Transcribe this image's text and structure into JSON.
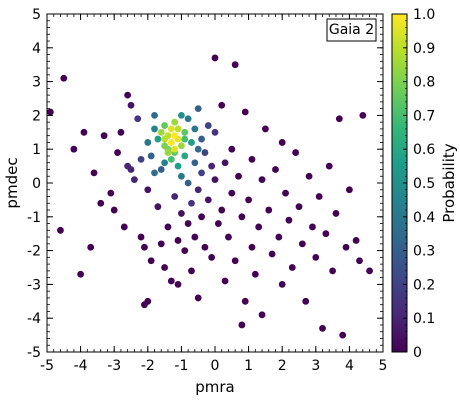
{
  "chart_data": {
    "type": "scatter",
    "annotation": "Gaia 2",
    "xlabel": "pmra",
    "ylabel": "pmdec",
    "xlim": [
      -5,
      5
    ],
    "ylim": [
      -5,
      5
    ],
    "x_ticks": [
      "-5",
      "-4",
      "-3",
      "-2",
      "-1",
      "0",
      "1",
      "2",
      "3",
      "4",
      "5"
    ],
    "y_ticks": [
      "5",
      "4",
      "3",
      "2",
      "1",
      "0",
      "-1",
      "-2",
      "-3",
      "-4",
      "-5"
    ],
    "grid": false,
    "colorbar": {
      "label": "Probability",
      "range": [
        0,
        1
      ],
      "ticks": [
        "1.0",
        "0.9",
        "0.8",
        "0.7",
        "0.6",
        "0.5",
        "0.4",
        "0.3",
        "0.2",
        "0.1",
        "0"
      ],
      "colormap": [
        "#440154",
        "#482878",
        "#3e4989",
        "#31688e",
        "#26828e",
        "#1f9e89",
        "#35b779",
        "#6ece58",
        "#b5de2b",
        "#fde725"
      ]
    },
    "points": [
      {
        "x": -4.5,
        "y": 3.1,
        "p": 0.0
      },
      {
        "x": -4.9,
        "y": 2.1,
        "p": 0.0
      },
      {
        "x": -4.6,
        "y": -1.4,
        "p": 0.0
      },
      {
        "x": -4.2,
        "y": 1.0,
        "p": 0.0
      },
      {
        "x": -3.9,
        "y": 1.5,
        "p": 0.0
      },
      {
        "x": -4.0,
        "y": -2.7,
        "p": 0.0
      },
      {
        "x": -3.7,
        "y": -1.9,
        "p": 0.0
      },
      {
        "x": -3.6,
        "y": 0.3,
        "p": 0.0
      },
      {
        "x": -3.4,
        "y": -0.6,
        "p": 0.0
      },
      {
        "x": -3.3,
        "y": 1.4,
        "p": 0.0
      },
      {
        "x": -3.1,
        "y": -0.3,
        "p": 0.0
      },
      {
        "x": -3.0,
        "y": -0.8,
        "p": 0.0
      },
      {
        "x": -2.9,
        "y": 0.9,
        "p": 0.0
      },
      {
        "x": -2.8,
        "y": 1.5,
        "p": 0.0
      },
      {
        "x": -2.7,
        "y": -1.3,
        "p": 0.0
      },
      {
        "x": -2.6,
        "y": 2.6,
        "p": 0.0
      },
      {
        "x": -2.5,
        "y": 2.3,
        "p": 0.05
      },
      {
        "x": -2.5,
        "y": 0.4,
        "p": 0.1
      },
      {
        "x": -2.4,
        "y": 0.1,
        "p": 0.1
      },
      {
        "x": -2.3,
        "y": 1.9,
        "p": 0.15
      },
      {
        "x": -2.2,
        "y": -1.6,
        "p": 0.0
      },
      {
        "x": -2.1,
        "y": -1.9,
        "p": 0.0
      },
      {
        "x": -2.1,
        "y": -3.6,
        "p": 0.0
      },
      {
        "x": -2.0,
        "y": -3.5,
        "p": 0.0
      },
      {
        "x": -2.0,
        "y": -0.2,
        "p": 0.05
      },
      {
        "x": -1.9,
        "y": -2.3,
        "p": 0.0
      },
      {
        "x": -1.9,
        "y": 0.8,
        "p": 0.3
      },
      {
        "x": -1.8,
        "y": 2.0,
        "p": 0.35
      },
      {
        "x": -1.8,
        "y": 1.6,
        "p": 0.45
      },
      {
        "x": -1.7,
        "y": 1.3,
        "p": 0.55
      },
      {
        "x": -1.7,
        "y": -0.7,
        "p": 0.05
      },
      {
        "x": -1.6,
        "y": -1.8,
        "p": 0.0
      },
      {
        "x": -1.6,
        "y": 0.4,
        "p": 0.3
      },
      {
        "x": -1.5,
        "y": 1.7,
        "p": 0.75
      },
      {
        "x": -1.5,
        "y": 1.1,
        "p": 0.8
      },
      {
        "x": -1.5,
        "y": -2.5,
        "p": 0.0
      },
      {
        "x": -1.4,
        "y": 1.4,
        "p": 0.9
      },
      {
        "x": -1.4,
        "y": 0.9,
        "p": 0.85
      },
      {
        "x": -1.4,
        "y": -1.3,
        "p": 0.0
      },
      {
        "x": -1.3,
        "y": 1.6,
        "p": 0.95
      },
      {
        "x": -1.3,
        "y": 1.2,
        "p": 1.0
      },
      {
        "x": -1.3,
        "y": 0.7,
        "p": 0.7
      },
      {
        "x": -1.3,
        "y": -2.9,
        "p": 0.0
      },
      {
        "x": -1.2,
        "y": 1.8,
        "p": 0.85
      },
      {
        "x": -1.2,
        "y": 1.0,
        "p": 0.95
      },
      {
        "x": -1.2,
        "y": 1.4,
        "p": 1.0
      },
      {
        "x": -1.2,
        "y": -0.4,
        "p": 0.1
      },
      {
        "x": -1.1,
        "y": 1.3,
        "p": 0.95
      },
      {
        "x": -1.1,
        "y": 0.5,
        "p": 0.55
      },
      {
        "x": -1.1,
        "y": -1.7,
        "p": 0.0
      },
      {
        "x": -1.1,
        "y": -3.0,
        "p": 0.0
      },
      {
        "x": -1.0,
        "y": 2.0,
        "p": 0.5
      },
      {
        "x": -1.0,
        "y": 1.1,
        "p": 0.85
      },
      {
        "x": -1.0,
        "y": 0.2,
        "p": 0.4
      },
      {
        "x": -1.0,
        "y": -0.9,
        "p": 0.05
      },
      {
        "x": -0.9,
        "y": 1.5,
        "p": 0.75
      },
      {
        "x": -0.9,
        "y": 0.8,
        "p": 0.6
      },
      {
        "x": -0.9,
        "y": -2.0,
        "p": 0.0
      },
      {
        "x": -0.8,
        "y": 1.9,
        "p": 0.4
      },
      {
        "x": -0.8,
        "y": 0.0,
        "p": 0.3
      },
      {
        "x": -0.8,
        "y": -1.2,
        "p": 0.0
      },
      {
        "x": -0.7,
        "y": 1.2,
        "p": 0.55
      },
      {
        "x": -0.7,
        "y": -0.6,
        "p": 0.15
      },
      {
        "x": -0.7,
        "y": -2.6,
        "p": 0.0
      },
      {
        "x": -0.6,
        "y": 1.6,
        "p": 0.4
      },
      {
        "x": -0.6,
        "y": 0.6,
        "p": 0.3
      },
      {
        "x": -0.6,
        "y": -1.6,
        "p": 0.0
      },
      {
        "x": -0.5,
        "y": 2.2,
        "p": 0.3
      },
      {
        "x": -0.5,
        "y": -0.2,
        "p": 0.1
      },
      {
        "x": -0.5,
        "y": -3.4,
        "p": 0.0
      },
      {
        "x": -0.4,
        "y": 1.3,
        "p": 0.3
      },
      {
        "x": -0.4,
        "y": 0.3,
        "p": 0.2
      },
      {
        "x": -0.4,
        "y": -1.0,
        "p": 0.0
      },
      {
        "x": -0.3,
        "y": 0.9,
        "p": 0.2
      },
      {
        "x": -0.3,
        "y": -1.9,
        "p": 0.0
      },
      {
        "x": -0.2,
        "y": 1.7,
        "p": 0.2
      },
      {
        "x": -0.2,
        "y": -0.5,
        "p": 0.05
      },
      {
        "x": -0.1,
        "y": 0.5,
        "p": 0.1
      },
      {
        "x": -0.1,
        "y": -2.2,
        "p": 0.0
      },
      {
        "x": 0.0,
        "y": 1.5,
        "p": 0.15
      },
      {
        "x": 0.0,
        "y": 3.7,
        "p": 0.0
      },
      {
        "x": 0.0,
        "y": 0.1,
        "p": 0.05
      },
      {
        "x": 0.1,
        "y": -1.2,
        "p": 0.0
      },
      {
        "x": 0.2,
        "y": 2.3,
        "p": 0.0
      },
      {
        "x": 0.2,
        "y": -0.8,
        "p": 0.0
      },
      {
        "x": 0.3,
        "y": 0.6,
        "p": 0.05
      },
      {
        "x": 0.3,
        "y": -2.9,
        "p": 0.0
      },
      {
        "x": 0.4,
        "y": -1.6,
        "p": 0.0
      },
      {
        "x": 0.5,
        "y": 1.0,
        "p": 0.0
      },
      {
        "x": 0.5,
        "y": -0.3,
        "p": 0.0
      },
      {
        "x": 0.6,
        "y": 3.5,
        "p": 0.0
      },
      {
        "x": 0.6,
        "y": -2.3,
        "p": 0.0
      },
      {
        "x": 0.7,
        "y": 0.2,
        "p": 0.0
      },
      {
        "x": 0.8,
        "y": -1.0,
        "p": 0.0
      },
      {
        "x": 0.8,
        "y": -4.2,
        "p": 0.0
      },
      {
        "x": 0.9,
        "y": 2.1,
        "p": 0.0
      },
      {
        "x": 0.9,
        "y": -3.5,
        "p": 0.0
      },
      {
        "x": 1.0,
        "y": -0.5,
        "p": 0.0
      },
      {
        "x": 1.1,
        "y": 0.7,
        "p": 0.0
      },
      {
        "x": 1.1,
        "y": -1.9,
        "p": 0.0
      },
      {
        "x": 1.2,
        "y": -2.7,
        "p": 0.0
      },
      {
        "x": 1.3,
        "y": -1.3,
        "p": 0.0
      },
      {
        "x": 1.4,
        "y": 0.1,
        "p": 0.0
      },
      {
        "x": 1.4,
        "y": -3.9,
        "p": 0.0
      },
      {
        "x": 1.5,
        "y": 1.6,
        "p": 0.0
      },
      {
        "x": 1.6,
        "y": -0.8,
        "p": 0.0
      },
      {
        "x": 1.7,
        "y": -2.1,
        "p": 0.0
      },
      {
        "x": 1.8,
        "y": 0.4,
        "p": 0.0
      },
      {
        "x": 1.9,
        "y": -1.6,
        "p": 0.0
      },
      {
        "x": 2.0,
        "y": 1.2,
        "p": 0.0
      },
      {
        "x": 2.0,
        "y": -3.0,
        "p": 0.0
      },
      {
        "x": 2.1,
        "y": -0.3,
        "p": 0.0
      },
      {
        "x": 2.2,
        "y": -1.1,
        "p": 0.0
      },
      {
        "x": 2.3,
        "y": -2.5,
        "p": 0.0
      },
      {
        "x": 2.4,
        "y": 0.9,
        "p": 0.0
      },
      {
        "x": 2.5,
        "y": -0.7,
        "p": 0.0
      },
      {
        "x": 2.6,
        "y": -1.8,
        "p": 0.0
      },
      {
        "x": 2.7,
        "y": -3.5,
        "p": 0.0
      },
      {
        "x": 2.8,
        "y": 0.2,
        "p": 0.0
      },
      {
        "x": 2.9,
        "y": -1.3,
        "p": 0.0
      },
      {
        "x": 3.0,
        "y": -2.2,
        "p": 0.0
      },
      {
        "x": 3.1,
        "y": -0.4,
        "p": 0.0
      },
      {
        "x": 3.2,
        "y": -4.3,
        "p": 0.0
      },
      {
        "x": 3.3,
        "y": -1.5,
        "p": 0.0
      },
      {
        "x": 3.4,
        "y": 0.5,
        "p": 0.0
      },
      {
        "x": 3.5,
        "y": -2.6,
        "p": 0.0
      },
      {
        "x": 3.6,
        "y": -0.9,
        "p": 0.0
      },
      {
        "x": 3.7,
        "y": 1.9,
        "p": 0.0
      },
      {
        "x": 3.8,
        "y": -4.5,
        "p": 0.0
      },
      {
        "x": 3.9,
        "y": -1.9,
        "p": 0.0
      },
      {
        "x": 4.0,
        "y": -0.2,
        "p": 0.0
      },
      {
        "x": 4.2,
        "y": -1.7,
        "p": 0.0
      },
      {
        "x": 4.3,
        "y": -2.3,
        "p": 0.0
      },
      {
        "x": 4.4,
        "y": 2.0,
        "p": 0.0
      },
      {
        "x": 4.6,
        "y": -2.6,
        "p": 0.0
      },
      {
        "x": -1.6,
        "y": 1.5,
        "p": 0.85
      },
      {
        "x": -1.5,
        "y": 1.3,
        "p": 0.9
      },
      {
        "x": -1.1,
        "y": 1.6,
        "p": 0.9
      },
      {
        "x": -1.4,
        "y": 1.0,
        "p": 0.8
      },
      {
        "x": -1.2,
        "y": 0.9,
        "p": 0.75
      },
      {
        "x": -0.9,
        "y": 1.3,
        "p": 0.7
      },
      {
        "x": -2.0,
        "y": 1.2,
        "p": 0.4
      },
      {
        "x": -1.8,
        "y": 0.3,
        "p": 0.35
      },
      {
        "x": -1.5,
        "y": 0.6,
        "p": 0.45
      },
      {
        "x": -2.2,
        "y": 0.7,
        "p": 0.2
      },
      {
        "x": -2.6,
        "y": 0.5,
        "p": 0.1
      },
      {
        "x": -0.5,
        "y": 1.0,
        "p": 0.35
      }
    ]
  }
}
